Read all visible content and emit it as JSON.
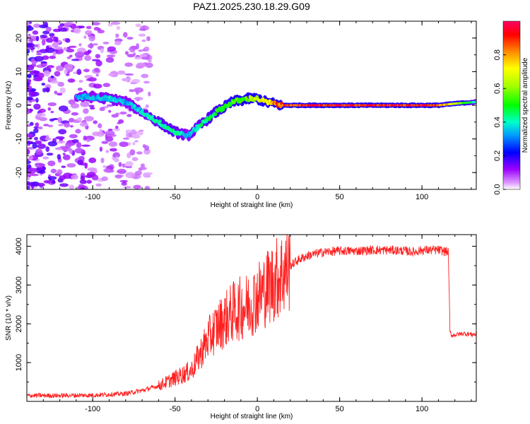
{
  "title": "PAZ1.2025.230.18.29.G09",
  "chart_data": [
    {
      "type": "heatmap",
      "xlabel": "Height of straight line (km)",
      "ylabel": "Frequency (Hz)",
      "xlim": [
        -140,
        133
      ],
      "ylim": [
        -25,
        25
      ],
      "xticks": [
        -100,
        -50,
        0,
        50,
        100
      ],
      "yticks": [
        -20,
        -10,
        0,
        10,
        20
      ],
      "colorbar": {
        "label": "Normalized spectral amplitude",
        "range": [
          0,
          1
        ],
        "ticks": [
          0.0,
          0.2,
          0.4,
          0.6,
          0.8
        ],
        "colormap": [
          "#ffffff",
          "#cc66ff",
          "#6600ff",
          "#0000ff",
          "#00ccff",
          "#00ff66",
          "#66ff00",
          "#ffff00",
          "#ff6600",
          "#ff0000",
          "#ff0066"
        ]
      },
      "ridge": {
        "x": [
          -110,
          -100,
          -90,
          -80,
          -70,
          -60,
          -50,
          -42,
          -35,
          -25,
          -15,
          -5,
          0,
          5,
          10,
          15,
          30,
          50,
          70,
          90,
          100,
          110,
          120,
          133
        ],
        "frequency": [
          2.5,
          2.5,
          2,
          1,
          -2,
          -5,
          -8,
          -9,
          -6,
          -2,
          1,
          2,
          2,
          1,
          0.5,
          0,
          0,
          0,
          0,
          0,
          0,
          0,
          0.5,
          1
        ],
        "amplitude": [
          0.35,
          0.35,
          0.4,
          0.35,
          0.4,
          0.45,
          0.45,
          0.35,
          0.45,
          0.5,
          0.55,
          0.6,
          0.7,
          0.75,
          0.85,
          0.9,
          0.95,
          0.95,
          0.95,
          0.95,
          0.95,
          0.9,
          0.7,
          0.4
        ]
      }
    },
    {
      "type": "line",
      "xlabel": "Height of straight line (km)",
      "ylabel": "SNR (10 * v/v)",
      "xlim": [
        -140,
        133
      ],
      "ylim": [
        0,
        4300
      ],
      "xticks": [
        -100,
        -50,
        0,
        50,
        100
      ],
      "yticks": [
        1000,
        2000,
        3000,
        4000
      ],
      "color": "#ff2020",
      "series": [
        {
          "x": [
            -140,
            -120,
            -100,
            -80,
            -70,
            -60,
            -50,
            -40,
            -35,
            -30,
            -25,
            -20,
            -15,
            -10,
            -5,
            0,
            5,
            10,
            15,
            20,
            25,
            30,
            40,
            50,
            60,
            70,
            80,
            90,
            95,
            100,
            110,
            116,
            117,
            118,
            125,
            133
          ],
          "values": [
            150,
            150,
            160,
            200,
            280,
            400,
            600,
            800,
            1200,
            1600,
            1900,
            2100,
            2300,
            2400,
            2500,
            2700,
            2900,
            3100,
            3300,
            3500,
            3650,
            3750,
            3850,
            3880,
            3880,
            3900,
            3900,
            3880,
            3850,
            3900,
            3900,
            3850,
            1800,
            1700,
            1750,
            1720
          ]
        }
      ]
    }
  ]
}
